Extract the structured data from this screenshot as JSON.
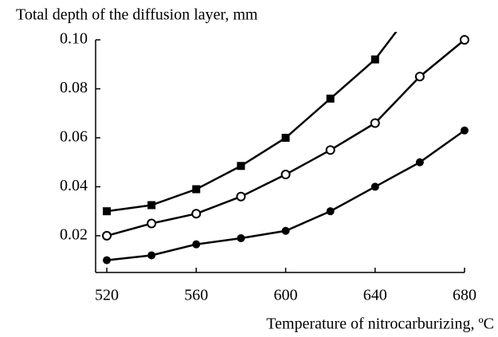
{
  "chart_data": {
    "type": "line",
    "title": "Total depth of the diffusion layer, mm",
    "xlabel": "Temperature of nitrocarburizing, ºC",
    "x": [
      520,
      540,
      560,
      580,
      600,
      620,
      640,
      660,
      680
    ],
    "series": [
      {
        "color": "#000000",
        "marker": "square",
        "values": [
          0.03,
          0.0325,
          0.039,
          0.0485,
          0.06,
          0.076,
          0.092,
          0.116,
          null
        ]
      },
      {
        "color": "#000000",
        "marker": "circle-open",
        "values": [
          0.02,
          0.025,
          0.029,
          0.036,
          0.045,
          0.055,
          0.066,
          0.085,
          0.1
        ]
      },
      {
        "color": "#000000",
        "marker": "circle",
        "values": [
          0.01,
          0.012,
          0.0165,
          0.019,
          0.022,
          0.03,
          0.04,
          0.05,
          0.063
        ]
      }
    ],
    "xlim": [
      515,
      680
    ],
    "xticks": [
      520,
      560,
      600,
      640,
      680
    ],
    "ylim": [
      0.005,
      0.1
    ],
    "yticks": [
      0.02,
      0.04,
      0.06,
      0.08,
      {
        "value": 0.1,
        "label": "0.10"
      }
    ],
    "grid": false
  }
}
